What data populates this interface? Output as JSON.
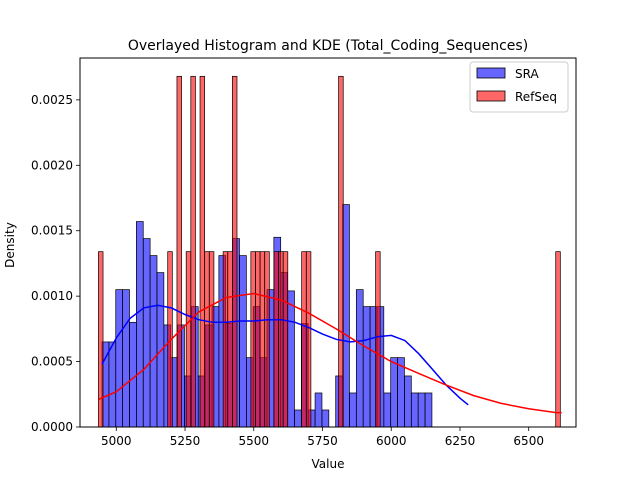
{
  "chart_data": {
    "type": "bar",
    "title": "Overlayed Histogram and KDE (Total_Coding_Sequences)",
    "xlabel": "Value",
    "ylabel": "Density",
    "xlim": [
      4868,
      6672
    ],
    "ylim": [
      0,
      0.00282
    ],
    "xticks": [
      5000,
      5250,
      5500,
      5750,
      6000,
      6250,
      6500
    ],
    "yticks": [
      0.0,
      0.0005,
      0.001,
      0.0015,
      0.002,
      0.0025
    ],
    "ytick_labels": [
      "0.0000",
      "0.0005",
      "0.0010",
      "0.0015",
      "0.0020",
      "0.0025"
    ],
    "grid": false,
    "legend_position": "top-right",
    "series": [
      {
        "name": "SRA",
        "kind": "histogram",
        "color": "#0000ff",
        "bin_start": 4948,
        "bin_width": 25,
        "values": [
          0.00065,
          0.00065,
          0.00105,
          0.00105,
          0.0008,
          0.00157,
          0.00144,
          0.00131,
          0.00118,
          0.00078,
          0.00053,
          0.00078,
          0.00039,
          0.00092,
          0.00039,
          0.00078,
          0.00092,
          0.00131,
          0.00079,
          0.00144,
          0.00131,
          0.00053,
          0.00092,
          0.00053,
          0.00105,
          0.00145,
          0.00118,
          0.00104,
          0.00013,
          0.00079,
          0.00013,
          0.00026,
          0.00013,
          0.0,
          0.00039,
          0.0017,
          0.00026,
          0.00105,
          0.00092,
          0.00092,
          0.00092,
          0.00026,
          0.00053,
          0.00053,
          0.00039,
          0.00026,
          0.00026,
          0.00026
        ]
      },
      {
        "name": "RefSeq",
        "kind": "histogram",
        "color": "#ff0000",
        "bin_start": 4935,
        "bin_width": 16.8,
        "values": [
          0.00134,
          0,
          0,
          0,
          0,
          0,
          0,
          0,
          0,
          0,
          0,
          0,
          0,
          0,
          0,
          0.00134,
          0,
          0.00268,
          0,
          0.00134,
          0.00268,
          0,
          0.00268,
          0.00134,
          0.00134,
          0,
          0,
          0.00134,
          0.00134,
          0.00268,
          0,
          0,
          0,
          0.00134,
          0.00134,
          0.00134,
          0.00134,
          0,
          0.00134,
          0.00134,
          0.00134,
          0,
          0,
          0,
          0.00134,
          0.00134,
          0,
          0,
          0,
          0,
          0,
          0,
          0.00268,
          0,
          0,
          0,
          0,
          0,
          0,
          0,
          0.00134,
          0,
          0,
          0,
          0,
          0,
          0,
          0,
          0,
          0,
          0,
          0,
          0,
          0,
          0,
          0,
          0,
          0,
          0,
          0,
          0,
          0,
          0,
          0,
          0,
          0,
          0,
          0,
          0,
          0,
          0,
          0,
          0,
          0,
          0,
          0,
          0,
          0,
          0,
          0.00134
        ]
      }
    ],
    "kde": [
      {
        "name": "SRA",
        "color": "#0000ff",
        "x": [
          4948,
          5000,
          5050,
          5100,
          5150,
          5200,
          5250,
          5300,
          5350,
          5400,
          5450,
          5500,
          5550,
          5600,
          5650,
          5700,
          5750,
          5800,
          5850,
          5900,
          5950,
          6000,
          6050,
          6100,
          6150,
          6200,
          6250,
          6280
        ],
        "y": [
          0.00048,
          0.00068,
          0.00083,
          0.00091,
          0.00093,
          0.00091,
          0.00086,
          0.00082,
          0.0008,
          0.0008,
          0.00081,
          0.00081,
          0.00082,
          0.00082,
          0.0008,
          0.00076,
          0.00071,
          0.00067,
          0.00065,
          0.00066,
          0.00069,
          0.0007,
          0.00066,
          0.00056,
          0.00044,
          0.00032,
          0.00022,
          0.00017
        ]
      },
      {
        "name": "RefSeq",
        "color": "#ff0000",
        "x": [
          4935,
          5000,
          5100,
          5200,
          5300,
          5400,
          5500,
          5600,
          5700,
          5800,
          5900,
          6000,
          6100,
          6200,
          6300,
          6400,
          6500,
          6600,
          6620
        ],
        "y": [
          0.00021,
          0.00027,
          0.00044,
          0.00067,
          0.00088,
          0.00099,
          0.00102,
          0.00097,
          0.00087,
          0.00075,
          0.00062,
          0.0005,
          0.00041,
          0.00032,
          0.00024,
          0.00018,
          0.00014,
          0.00011,
          0.00011
        ]
      }
    ]
  }
}
